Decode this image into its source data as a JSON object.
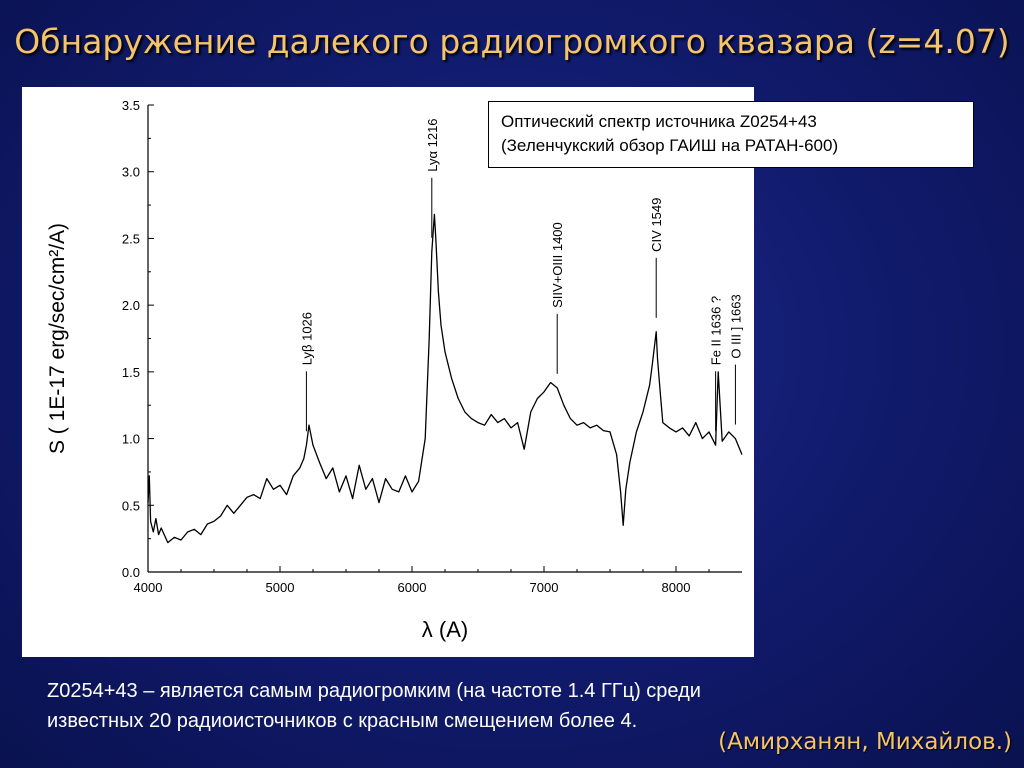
{
  "slide": {
    "title": "Обнаружение далекого радиогромкого квазара (z=4.07)",
    "caption_line1": "Оптический спектр  источника Z0254+43",
    "caption_line2": "(Зеленчукский обзор  ГАИШ  на РАТАН-600)",
    "footer_line1": "Z0254+43 – является самым радиогромким  (на частоте 1.4 ГГц) среди",
    "footer_line2": "известных 20 радиоисточников с красным смещением более 4.",
    "credit": "(Амирханян, Михайлов.)",
    "title_color": "#f5c46a",
    "background_color": "#101a6a"
  },
  "chart_data": {
    "type": "line",
    "title": "",
    "xlabel": "λ (A)",
    "ylabel": "S ( 1E-17 erg/sec/cm²/A)",
    "xlim": [
      4000,
      8500
    ],
    "ylim": [
      0.0,
      3.5
    ],
    "xticks": [
      4000,
      5000,
      6000,
      7000,
      8000
    ],
    "xtick_labels": [
      "4000",
      "5000",
      "6000",
      "7000",
      "8000"
    ],
    "yticks": [
      0.0,
      0.5,
      1.0,
      1.5,
      2.0,
      2.5,
      3.0,
      3.5
    ],
    "ytick_labels": [
      "0.0",
      "0.5",
      "1.0",
      "1.5",
      "2.0",
      "2.5",
      "3.0",
      "3.5"
    ],
    "grid": false,
    "legend": "none",
    "series": [
      {
        "x": [
          4000,
          4010,
          4020,
          4040,
          4060,
          4080,
          4100,
          4150,
          4200,
          4250,
          4300,
          4350,
          4400,
          4450,
          4500,
          4550,
          4600,
          4650,
          4700,
          4750,
          4800,
          4850,
          4900,
          4950,
          5000,
          5050,
          5100,
          5150,
          5180,
          5200,
          5220,
          5250,
          5300,
          5350,
          5400,
          5450,
          5500,
          5550,
          5600,
          5650,
          5700,
          5750,
          5800,
          5850,
          5900,
          5950,
          6000,
          6050,
          6100,
          6130,
          6150,
          6170,
          6180,
          6200,
          6220,
          6250,
          6300,
          6350,
          6400,
          6450,
          6500,
          6550,
          6600,
          6650,
          6700,
          6750,
          6800,
          6850,
          6900,
          6950,
          7000,
          7050,
          7100,
          7150,
          7200,
          7250,
          7300,
          7350,
          7400,
          7450,
          7500,
          7550,
          7580,
          7600,
          7620,
          7650,
          7700,
          7750,
          7800,
          7820,
          7850,
          7860,
          7880,
          7900,
          7950,
          8000,
          8050,
          8100,
          8150,
          8200,
          8250,
          8300,
          8320,
          8350,
          8400,
          8450,
          8500
        ],
        "y": [
          0.52,
          0.72,
          0.38,
          0.3,
          0.4,
          0.28,
          0.33,
          0.22,
          0.26,
          0.24,
          0.3,
          0.32,
          0.28,
          0.36,
          0.38,
          0.42,
          0.5,
          0.44,
          0.5,
          0.56,
          0.58,
          0.55,
          0.7,
          0.62,
          0.65,
          0.58,
          0.72,
          0.78,
          0.85,
          0.95,
          1.1,
          0.95,
          0.82,
          0.7,
          0.78,
          0.6,
          0.72,
          0.55,
          0.8,
          0.62,
          0.7,
          0.52,
          0.7,
          0.62,
          0.6,
          0.72,
          0.6,
          0.68,
          1.0,
          1.75,
          2.4,
          2.68,
          2.5,
          2.1,
          1.85,
          1.65,
          1.45,
          1.3,
          1.2,
          1.15,
          1.12,
          1.1,
          1.18,
          1.12,
          1.15,
          1.08,
          1.12,
          0.92,
          1.2,
          1.3,
          1.35,
          1.42,
          1.38,
          1.25,
          1.15,
          1.1,
          1.12,
          1.08,
          1.1,
          1.06,
          1.05,
          0.88,
          0.6,
          0.35,
          0.62,
          0.82,
          1.05,
          1.2,
          1.4,
          1.55,
          1.8,
          1.6,
          1.35,
          1.12,
          1.08,
          1.05,
          1.08,
          1.02,
          1.12,
          1.0,
          1.05,
          0.95,
          1.5,
          0.98,
          1.05,
          1.0,
          0.88
        ]
      }
    ],
    "annotations": [
      {
        "label": "Lyβ 1026",
        "x": 5200
      },
      {
        "label": "Lyα 1216",
        "x": 6150
      },
      {
        "label": "SIIV+OIII 1400",
        "x": 7100
      },
      {
        "label": "CIV 1549",
        "x": 7850
      },
      {
        "label": "Fe II 1636 ?",
        "x": 8300
      },
      {
        "label": "O III ] 1663",
        "x": 8450
      }
    ]
  }
}
